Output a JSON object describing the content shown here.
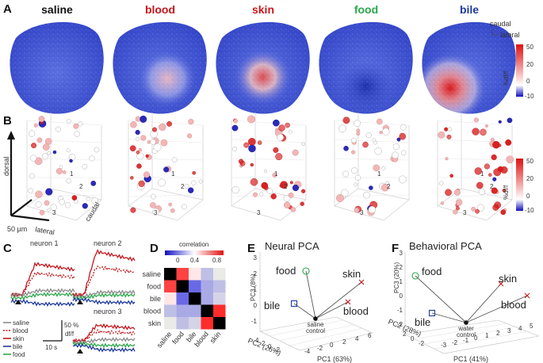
{
  "panel_letters": {
    "a": "A",
    "b": "B",
    "c": "C",
    "d": "D",
    "e": "E",
    "f": "F"
  },
  "colors": {
    "saline": "#222222",
    "blood": "#c4161c",
    "skin": "#c4161c",
    "food": "#2aa84a",
    "bile": "#1f3a9e",
    "grey": "#8a8a8a"
  },
  "panelA": {
    "stimuli": [
      {
        "label": "saline",
        "color": "#111111"
      },
      {
        "label": "blood",
        "color": "#c4161c"
      },
      {
        "label": "skin",
        "color": "#c4161c"
      },
      {
        "label": "food",
        "color": "#2aa84a"
      },
      {
        "label": "bile",
        "color": "#1f3a9e"
      }
    ],
    "orientation": {
      "caudal": "caudal",
      "lateral": "lateral"
    },
    "colorbar": {
      "ticks": [
        "50",
        "20",
        "0",
        "-10"
      ],
      "label": "%df/f"
    }
  },
  "panelB": {
    "axes": {
      "dorsal": "dorsal",
      "caudal": "caudal",
      "lateral": "lateral"
    },
    "scale": "50 µm",
    "neuron_ids": [
      "1",
      "2",
      "3"
    ],
    "colorbar": {
      "ticks": [
        "50",
        "20",
        "0",
        "-10"
      ],
      "label": "%df/f"
    }
  },
  "panelC": {
    "titles": {
      "n1": "neuron 1",
      "n2": "neuron 2",
      "n3": "neuron 3"
    },
    "legend": [
      {
        "label": "saline",
        "color": "#8a8a8a",
        "dash": false
      },
      {
        "label": "blood",
        "color": "#c4161c",
        "dash": true
      },
      {
        "label": "skin",
        "color": "#c4161c",
        "dash": false
      },
      {
        "label": "bile",
        "color": "#1f3a9e",
        "dash": false
      },
      {
        "label": "food",
        "color": "#2aa84a",
        "dash": false
      }
    ],
    "scale_y": "50 %",
    "scale_y2": "df/f",
    "scale_x": "10 s"
  },
  "panelD": {
    "colorbar_title": "correlation",
    "colorbar_ticks": [
      "0",
      "0.4",
      "0.8"
    ],
    "rows": [
      {
        "label": "saline",
        "color": "#111111"
      },
      {
        "label": "food",
        "color": "#2aa84a"
      },
      {
        "label": "bile",
        "color": "#1f3a9e"
      },
      {
        "label": "blood",
        "color": "#c4161c"
      },
      {
        "label": "skin",
        "color": "#c4161c"
      }
    ],
    "matrix": [
      [
        0.0,
        0.9,
        0.55,
        0.35,
        0.45
      ],
      [
        0.9,
        0.0,
        0.15,
        0.3,
        0.35
      ],
      [
        0.55,
        0.15,
        0.0,
        0.3,
        0.4
      ],
      [
        0.35,
        0.3,
        0.3,
        0.0,
        0.95
      ],
      [
        0.45,
        0.35,
        0.4,
        0.95,
        0.0
      ]
    ]
  },
  "panelE": {
    "title": "Neural PCA",
    "points": [
      {
        "label": "food",
        "color": "#2aa84a"
      },
      {
        "label": "skin",
        "color": "#c4161c"
      },
      {
        "label": "bile",
        "color": "#1f3a9e"
      },
      {
        "label": "blood",
        "color": "#c4161c"
      }
    ],
    "origin_label_1": "saline",
    "origin_label_2": "control",
    "axis_x": "PC1 (63%)",
    "axis_y": "PC2 (26%)",
    "axis_z": "PC3 (8%)",
    "z_ticks": [
      "3",
      "2",
      "1",
      "0",
      "-1"
    ],
    "y_ticks": [
      "4",
      "2",
      "0",
      "-2"
    ],
    "x_ticks": [
      "-4",
      "-2",
      "0",
      "2",
      "4",
      "6"
    ]
  },
  "panelF": {
    "title": "Behavioral PCA",
    "points": [
      {
        "label": "food",
        "color": "#2aa84a"
      },
      {
        "label": "skin",
        "color": "#c4161c"
      },
      {
        "label": "bile",
        "color": "#1f3a9e"
      },
      {
        "label": "blood",
        "color": "#c4161c"
      }
    ],
    "origin_label_1": "water",
    "origin_label_2": "control",
    "axis_x": "PC1 (41%)",
    "axis_y": "PC2 (28%)",
    "axis_z": "PC3 (20%)",
    "z_ticks": [
      "3",
      "2",
      "1",
      "0",
      "-1",
      "-2"
    ],
    "y_ticks": [
      "2",
      "0",
      "-2"
    ],
    "x_ticks": [
      "-3",
      "-2",
      "-1",
      "0",
      "1",
      "2",
      "3",
      "4",
      "5"
    ]
  }
}
